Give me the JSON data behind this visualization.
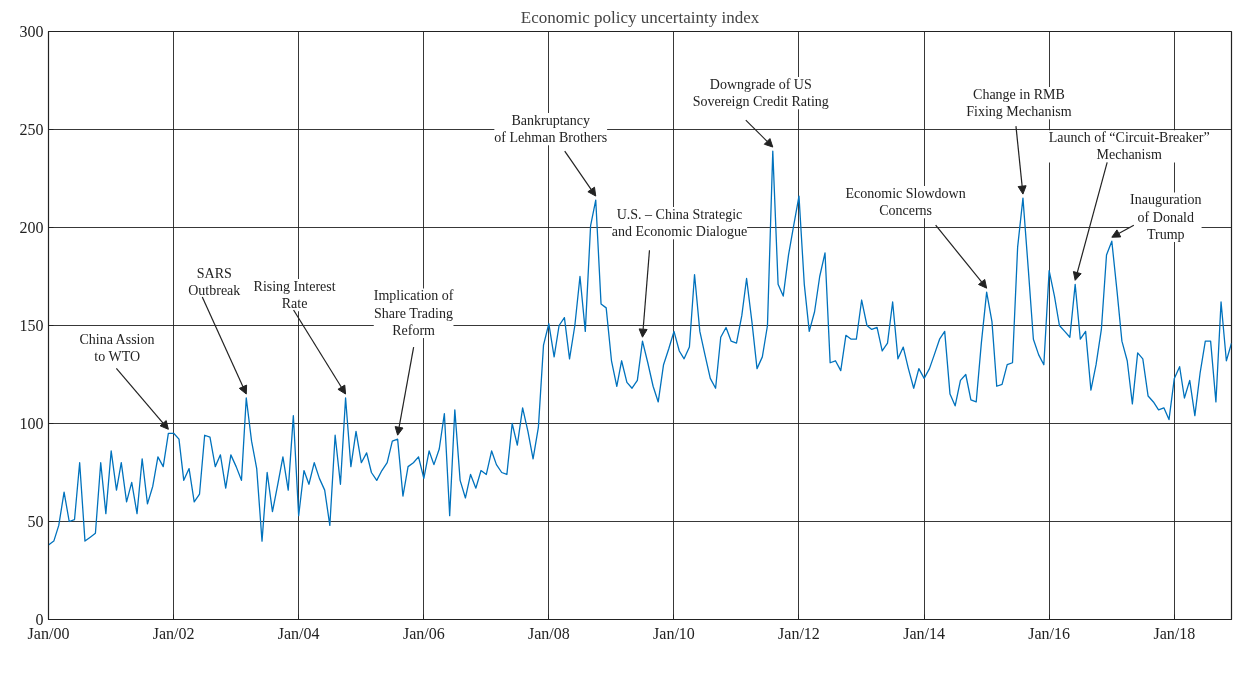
{
  "chart_data": {
    "type": "line",
    "title": "Economic policy uncertainty index",
    "x": [
      "2000-01",
      "2000-02",
      "2000-03",
      "2000-04",
      "2000-05",
      "2000-06",
      "2000-07",
      "2000-08",
      "2000-09",
      "2000-10",
      "2000-11",
      "2000-12",
      "2001-01",
      "2001-02",
      "2001-03",
      "2001-04",
      "2001-05",
      "2001-06",
      "2001-07",
      "2001-08",
      "2001-09",
      "2001-10",
      "2001-11",
      "2001-12",
      "2002-01",
      "2002-02",
      "2002-03",
      "2002-04",
      "2002-05",
      "2002-06",
      "2002-07",
      "2002-08",
      "2002-09",
      "2002-10",
      "2002-11",
      "2002-12",
      "2003-01",
      "2003-02",
      "2003-03",
      "2003-04",
      "2003-05",
      "2003-06",
      "2003-07",
      "2003-08",
      "2003-09",
      "2003-10",
      "2003-11",
      "2003-12",
      "2004-01",
      "2004-02",
      "2004-03",
      "2004-04",
      "2004-05",
      "2004-06",
      "2004-07",
      "2004-08",
      "2004-09",
      "2004-10",
      "2004-11",
      "2004-12",
      "2005-01",
      "2005-02",
      "2005-03",
      "2005-04",
      "2005-05",
      "2005-06",
      "2005-07",
      "2005-08",
      "2005-09",
      "2005-10",
      "2005-11",
      "2005-12",
      "2006-01",
      "2006-02",
      "2006-03",
      "2006-04",
      "2006-05",
      "2006-06",
      "2006-07",
      "2006-08",
      "2006-09",
      "2006-10",
      "2006-11",
      "2006-12",
      "2007-01",
      "2007-02",
      "2007-03",
      "2007-04",
      "2007-05",
      "2007-06",
      "2007-07",
      "2007-08",
      "2007-09",
      "2007-10",
      "2007-11",
      "2007-12",
      "2008-01",
      "2008-02",
      "2008-03",
      "2008-04",
      "2008-05",
      "2008-06",
      "2008-07",
      "2008-08",
      "2008-09",
      "2008-10",
      "2008-11",
      "2008-12",
      "2009-01",
      "2009-02",
      "2009-03",
      "2009-04",
      "2009-05",
      "2009-06",
      "2009-07",
      "2009-08",
      "2009-09",
      "2009-10",
      "2009-11",
      "2009-12",
      "2010-01",
      "2010-02",
      "2010-03",
      "2010-04",
      "2010-05",
      "2010-06",
      "2010-07",
      "2010-08",
      "2010-09",
      "2010-10",
      "2010-11",
      "2010-12",
      "2011-01",
      "2011-02",
      "2011-03",
      "2011-04",
      "2011-05",
      "2011-06",
      "2011-07",
      "2011-08",
      "2011-09",
      "2011-10",
      "2011-11",
      "2011-12",
      "2012-01",
      "2012-02",
      "2012-03",
      "2012-04",
      "2012-05",
      "2012-06",
      "2012-07",
      "2012-08",
      "2012-09",
      "2012-10",
      "2012-11",
      "2012-12",
      "2013-01",
      "2013-02",
      "2013-03",
      "2013-04",
      "2013-05",
      "2013-06",
      "2013-07",
      "2013-08",
      "2013-09",
      "2013-10",
      "2013-11",
      "2013-12",
      "2014-01",
      "2014-02",
      "2014-03",
      "2014-04",
      "2014-05",
      "2014-06",
      "2014-07",
      "2014-08",
      "2014-09",
      "2014-10",
      "2014-11",
      "2014-12",
      "2015-01",
      "2015-02",
      "2015-03",
      "2015-04",
      "2015-05",
      "2015-06",
      "2015-07",
      "2015-08",
      "2015-09",
      "2015-10",
      "2015-11",
      "2015-12",
      "2016-01",
      "2016-02",
      "2016-03",
      "2016-04",
      "2016-05",
      "2016-06",
      "2016-07",
      "2016-08",
      "2016-09",
      "2016-10",
      "2016-11",
      "2016-12",
      "2017-01",
      "2017-02",
      "2017-03",
      "2017-04",
      "2017-05",
      "2017-06",
      "2017-07",
      "2017-08",
      "2017-09",
      "2017-10",
      "2017-11",
      "2017-12",
      "2018-01",
      "2018-02",
      "2018-03",
      "2018-04",
      "2018-05",
      "2018-06",
      "2018-07",
      "2018-08",
      "2018-09",
      "2018-10",
      "2018-11",
      "2018-12"
    ],
    "series": [
      {
        "color": "#0072bd",
        "values": [
          38,
          40,
          48,
          65,
          50,
          51,
          80,
          40,
          42,
          44,
          80,
          54,
          86,
          66,
          80,
          60,
          70,
          54,
          82,
          59,
          68,
          83,
          78,
          95,
          95,
          92,
          71,
          77,
          60,
          64,
          94,
          93,
          78,
          84,
          67,
          84,
          78,
          71,
          113,
          91,
          77,
          40,
          75,
          55,
          69,
          83,
          66,
          104,
          53,
          76,
          69,
          80,
          72,
          66,
          48,
          94,
          69,
          113,
          78,
          96,
          80,
          85,
          75,
          71,
          76,
          80,
          91,
          92,
          63,
          78,
          80,
          83,
          72,
          86,
          79,
          87,
          105,
          53,
          107,
          71,
          62,
          74,
          67,
          76,
          74,
          86,
          79,
          75,
          74,
          100,
          89,
          108,
          96,
          82,
          98,
          140,
          151,
          134,
          150,
          154,
          133,
          150,
          175,
          147,
          201,
          214,
          161,
          159,
          132,
          119,
          132,
          121,
          118,
          122,
          142,
          131,
          119,
          111,
          130,
          138,
          147,
          137,
          133,
          139,
          176,
          147,
          135,
          123,
          118,
          144,
          149,
          142,
          141,
          155,
          174,
          152,
          128,
          134,
          150,
          239,
          171,
          165,
          186,
          201,
          216,
          171,
          147,
          157,
          175,
          187,
          131,
          132,
          127,
          145,
          143,
          143,
          163,
          150,
          148,
          149,
          137,
          141,
          162,
          133,
          139,
          128,
          118,
          128,
          123,
          128,
          135,
          143,
          147,
          115,
          109,
          122,
          125,
          112,
          111,
          141,
          167,
          152,
          119,
          120,
          130,
          131,
          190,
          215,
          179,
          143,
          135,
          130,
          178,
          165,
          150,
          147,
          144,
          171,
          143,
          147,
          117,
          130,
          148,
          186,
          193,
          167,
          142,
          132,
          110,
          136,
          133,
          114,
          111,
          107,
          108,
          102,
          123,
          129,
          113,
          122,
          104,
          126,
          142,
          142,
          111,
          162,
          132,
          141
        ]
      }
    ],
    "xlim": [
      "2000-01",
      "2018-12"
    ],
    "xticks": [
      {
        "value": "2000-01",
        "label": "Jan/00"
      },
      {
        "value": "2002-01",
        "label": "Jan/02"
      },
      {
        "value": "2004-01",
        "label": "Jan/04"
      },
      {
        "value": "2006-01",
        "label": "Jan/06"
      },
      {
        "value": "2008-01",
        "label": "Jan/08"
      },
      {
        "value": "2010-01",
        "label": "Jan/10"
      },
      {
        "value": "2012-01",
        "label": "Jan/12"
      },
      {
        "value": "2014-01",
        "label": "Jan/14"
      },
      {
        "value": "2016-01",
        "label": "Jan/16"
      },
      {
        "value": "2018-01",
        "label": "Jan/18"
      }
    ],
    "ylim": [
      0,
      300
    ],
    "yticks": [
      0,
      50,
      100,
      150,
      200,
      250,
      300
    ],
    "grid": true,
    "annotations": [
      {
        "text": "China Assion\nto WTO",
        "x": "2001-12",
        "y": 95
      },
      {
        "text": "SARS\nOutbreak",
        "x": "2003-03",
        "y": 113
      },
      {
        "text": "Rising Interest\nRate",
        "x": "2004-10",
        "y": 113
      },
      {
        "text": "Implication of\nShare Trading\nReform",
        "x": "2005-08",
        "y": 92
      },
      {
        "text": "Bankruptancy\nof Lehman Brothers",
        "x": "2008-10",
        "y": 214
      },
      {
        "text": "U.S. – China Strategic\nand Economic Dialogue",
        "x": "2009-07",
        "y": 142
      },
      {
        "text": "Downgrade of US\nSovereign Credit Rating",
        "x": "2011-08",
        "y": 239
      },
      {
        "text": "Economic Slowdown\nConcerns",
        "x": "2015-01",
        "y": 167
      },
      {
        "text": "Change in RMB\nFixing Mechanism",
        "x": "2015-08",
        "y": 215
      },
      {
        "text": "Launch of “Circuit-Breaker”\nMechanism",
        "x": "2016-06",
        "y": 171
      },
      {
        "text": "Inauguration\nof Donald\nTrump",
        "x": "2017-01",
        "y": 193
      }
    ]
  }
}
